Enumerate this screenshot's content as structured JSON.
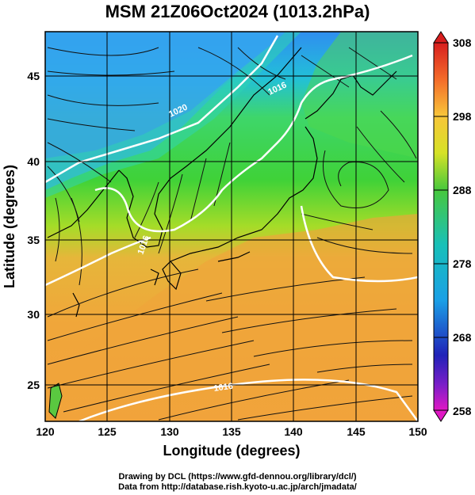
{
  "title": "MSM 21Z06Oct2024 (1013.2hPa)",
  "x_axis": {
    "label": "Longitude (degrees)",
    "ticks": [
      "120",
      "125",
      "130",
      "135",
      "140",
      "145",
      "150"
    ]
  },
  "y_axis": {
    "label": "Latitude  (degrees)",
    "ticks": [
      "25",
      "30",
      "35",
      "40",
      "45"
    ]
  },
  "colorbar": {
    "labels": [
      "308",
      "298",
      "288",
      "278",
      "268",
      "258"
    ],
    "min": 258,
    "max": 308
  },
  "contour_labels": [
    "1020",
    "1016",
    "1016",
    "1016"
  ],
  "credits": [
    "Drawing by DCL (https://www.gfd-dennou.org/library/dcl/)",
    "Data from http://database.rish.kyoto-u.ac.jp/arch/jmadata/"
  ],
  "chart_data": {
    "type": "map",
    "field": "surface temperature (K) with wind streamlines and isobars (hPa)",
    "xlim": [
      120,
      150
    ],
    "ylim": [
      22.4,
      47.6
    ],
    "color_range": [
      258,
      308
    ],
    "isobars": [
      1020,
      1016,
      1016,
      1016
    ]
  }
}
